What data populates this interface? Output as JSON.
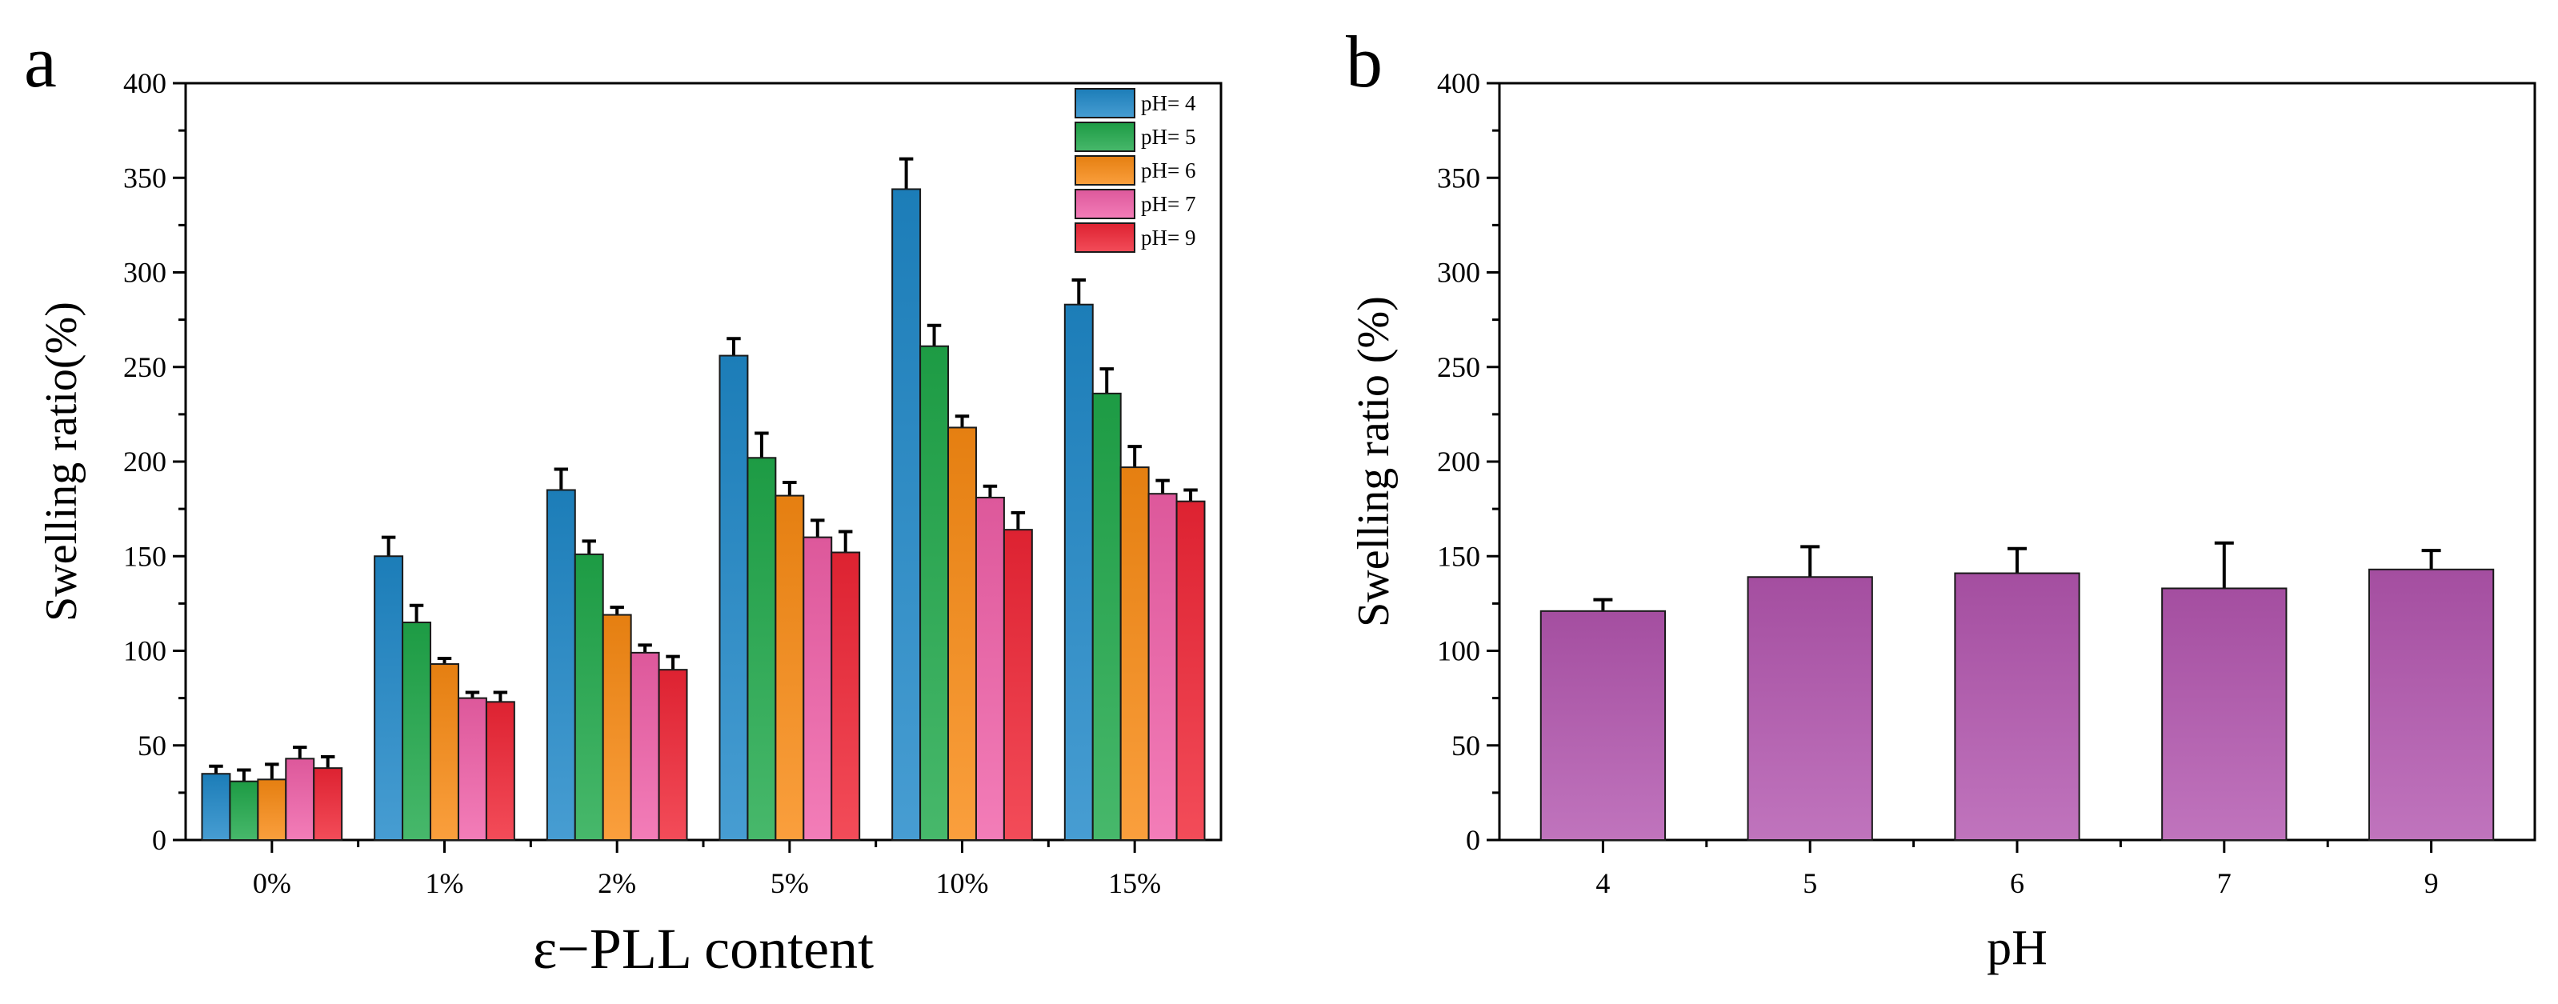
{
  "chart_data": [
    {
      "type": "bar",
      "panel_label": "a",
      "categories": [
        "0%",
        "1%",
        "2%",
        "5%",
        "10%",
        "15%"
      ],
      "series": [
        {
          "name": "pH= 4",
          "color": "#1E88C8",
          "values": [
            35,
            150,
            185,
            256,
            344,
            283
          ],
          "errors": [
            4,
            10,
            11,
            9,
            16,
            13
          ]
        },
        {
          "name": "pH= 5",
          "color": "#1FA84A",
          "values": [
            31,
            115,
            151,
            202,
            261,
            236
          ],
          "errors": [
            6,
            9,
            7,
            13,
            11,
            13
          ]
        },
        {
          "name": "pH= 6",
          "color": "#F98A12",
          "values": [
            32,
            93,
            119,
            182,
            218,
            197
          ],
          "errors": [
            8,
            3,
            4,
            7,
            6,
            11
          ]
        },
        {
          "name": "pH= 7",
          "color": "#F060A8",
          "values": [
            43,
            75,
            99,
            160,
            181,
            183
          ],
          "errors": [
            6,
            3,
            4,
            9,
            6,
            7
          ]
        },
        {
          "name": "pH= 9",
          "color": "#F02535",
          "values": [
            38,
            73,
            90,
            152,
            164,
            179
          ],
          "errors": [
            6,
            5,
            7,
            11,
            9,
            6
          ]
        }
      ],
      "xlabel": "ε−PLL content",
      "ylabel": "Swelling ratio(%)",
      "ylim": [
        0,
        400
      ],
      "yticks": [
        "0",
        "50",
        "100",
        "150",
        "200",
        "250",
        "300",
        "350",
        "400"
      ],
      "legend_position": "top-right"
    },
    {
      "type": "bar",
      "panel_label": "b",
      "categories": [
        "4",
        "5",
        "6",
        "7",
        "9"
      ],
      "series": [
        {
          "name": "Swelling ratio",
          "color": "#B255AE",
          "values": [
            121,
            139,
            141,
            133,
            143
          ],
          "errors": [
            6,
            16,
            13,
            24,
            10
          ]
        }
      ],
      "xlabel": "pH",
      "ylabel": "Swelling ratio (%)",
      "ylim": [
        0,
        400
      ],
      "yticks": [
        "0",
        "50",
        "100",
        "150",
        "200",
        "250",
        "300",
        "350",
        "400"
      ]
    }
  ]
}
